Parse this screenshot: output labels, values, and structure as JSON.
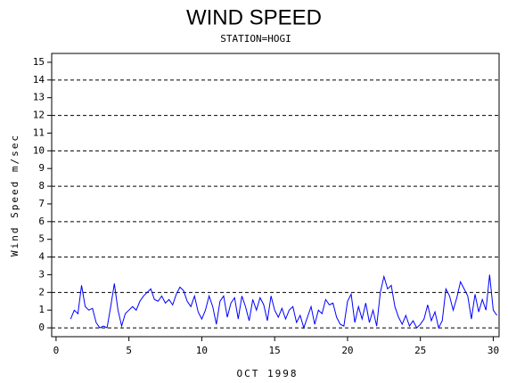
{
  "chart_data": {
    "type": "line",
    "title": "WIND SPEED",
    "subtitle": "STATION=HOGI",
    "x_label": "OCT 1998",
    "y_label": "Wind Speed m/sec",
    "xlim": [
      -0.3,
      30.4
    ],
    "ylim": [
      -0.5,
      15.5
    ],
    "xticks": [
      0,
      5,
      10,
      15,
      20,
      25,
      30
    ],
    "yticks": [
      0,
      1,
      2,
      3,
      4,
      5,
      6,
      7,
      8,
      9,
      10,
      11,
      12,
      13,
      14,
      15
    ],
    "ygrid": [
      0,
      2,
      4,
      6,
      8,
      10,
      12,
      14
    ],
    "x": [
      1.0,
      1.25,
      1.5,
      1.75,
      2.0,
      2.25,
      2.5,
      2.75,
      3.0,
      3.25,
      3.5,
      3.75,
      4.0,
      4.25,
      4.5,
      4.75,
      5.0,
      5.25,
      5.5,
      5.75,
      6.0,
      6.25,
      6.5,
      6.75,
      7.0,
      7.25,
      7.5,
      7.75,
      8.0,
      8.25,
      8.5,
      8.75,
      9.0,
      9.25,
      9.5,
      9.75,
      10.0,
      10.25,
      10.5,
      10.75,
      11.0,
      11.25,
      11.5,
      11.75,
      12.0,
      12.25,
      12.5,
      12.75,
      13.0,
      13.25,
      13.5,
      13.75,
      14.0,
      14.25,
      14.5,
      14.75,
      15.0,
      15.25,
      15.5,
      15.75,
      16.0,
      16.25,
      16.5,
      16.75,
      17.0,
      17.25,
      17.5,
      17.75,
      18.0,
      18.25,
      18.5,
      18.75,
      19.0,
      19.25,
      19.5,
      19.75,
      20.0,
      20.25,
      20.5,
      20.75,
      21.0,
      21.25,
      21.5,
      21.75,
      22.0,
      22.25,
      22.5,
      22.75,
      23.0,
      23.25,
      23.5,
      23.75,
      24.0,
      24.25,
      24.5,
      24.75,
      25.0,
      25.25,
      25.5,
      25.75,
      26.0,
      26.25,
      26.5,
      26.75,
      27.0,
      27.25,
      27.5,
      27.75,
      28.0,
      28.25,
      28.5,
      28.75,
      29.0,
      29.25,
      29.5,
      29.75,
      30.0,
      30.25
    ],
    "series": [
      {
        "name": "Wind Speed",
        "color": "#0000ff",
        "values": [
          0.5,
          1.0,
          0.8,
          2.4,
          1.2,
          1.0,
          1.1,
          0.3,
          0.0,
          0.1,
          0.0,
          1.2,
          2.5,
          1.0,
          0.1,
          0.8,
          1.0,
          1.2,
          1.0,
          1.5,
          1.8,
          2.0,
          2.2,
          1.6,
          1.5,
          1.8,
          1.4,
          1.6,
          1.3,
          1.9,
          2.3,
          2.1,
          1.5,
          1.2,
          1.8,
          0.9,
          0.5,
          1.0,
          1.8,
          1.2,
          0.2,
          1.5,
          1.8,
          0.6,
          1.4,
          1.7,
          0.5,
          1.8,
          1.2,
          0.4,
          1.6,
          1.0,
          1.7,
          1.3,
          0.4,
          1.8,
          1.0,
          0.6,
          1.1,
          0.5,
          1.0,
          1.2,
          0.3,
          0.7,
          0.0,
          0.6,
          1.2,
          0.2,
          1.0,
          0.8,
          1.6,
          1.3,
          1.4,
          0.6,
          0.2,
          0.1,
          1.5,
          1.9,
          0.3,
          1.2,
          0.5,
          1.4,
          0.3,
          1.0,
          0.1,
          2.0,
          2.9,
          2.2,
          2.4,
          1.2,
          0.6,
          0.2,
          0.7,
          0.1,
          0.4,
          0.0,
          0.2,
          0.5,
          1.3,
          0.4,
          0.9,
          0.0,
          0.4,
          2.2,
          1.8,
          1.0,
          1.7,
          2.6,
          2.2,
          1.8,
          0.5,
          1.9,
          0.9,
          1.6,
          1.0,
          3.0,
          1.0,
          0.7
        ]
      }
    ]
  }
}
